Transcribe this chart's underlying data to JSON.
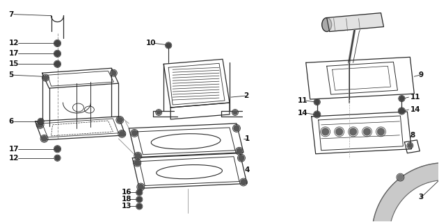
{
  "bg_color": "#ffffff",
  "line_color": "#2a2a2a",
  "gray_fill": "#888888",
  "light_gray": "#bbbbbb",
  "fs": 7.5,
  "lw": 0.9
}
